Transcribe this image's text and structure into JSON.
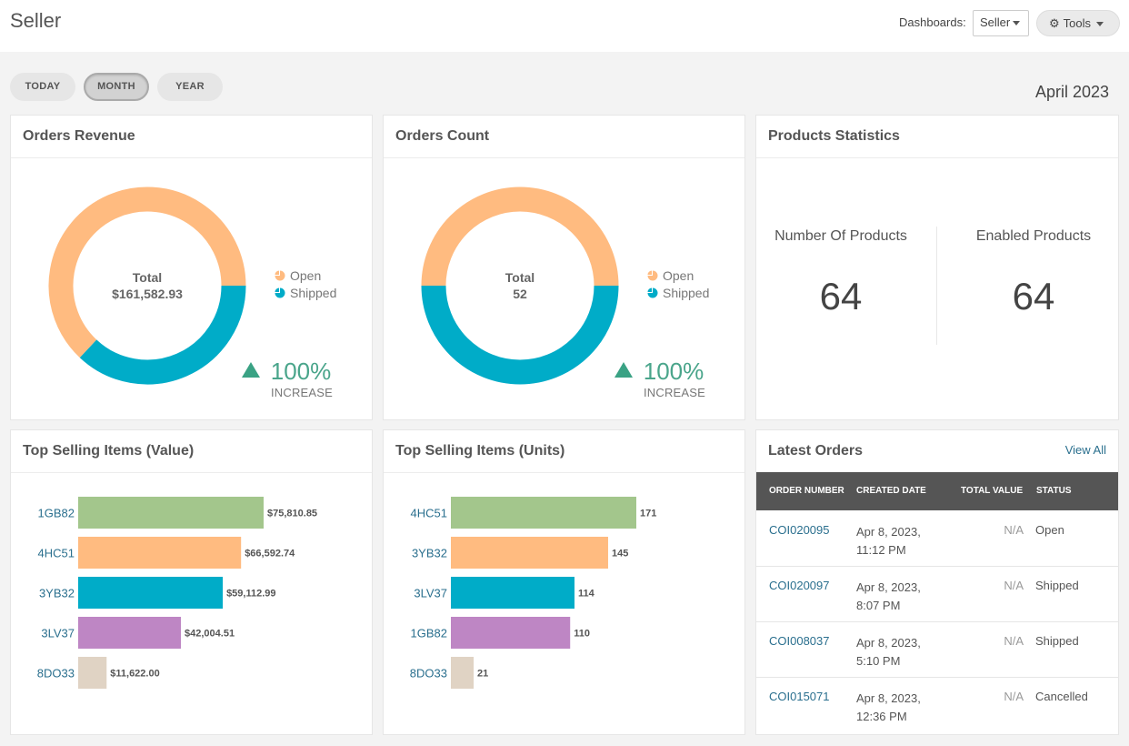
{
  "header": {
    "title": "Seller",
    "dashboards_label": "Dashboards:",
    "dashboard_select": "Seller",
    "tools_label": "Tools",
    "tools_icon": "gear-icon"
  },
  "period_tabs": [
    {
      "label": "TODAY",
      "active": false
    },
    {
      "label": "MONTH",
      "active": true
    },
    {
      "label": "YEAR",
      "active": false
    }
  ],
  "period_label": "April 2023",
  "orders_revenue": {
    "title": "Orders Revenue",
    "center_label": "Total",
    "center_value": "$161,582.93",
    "legend": [
      {
        "name": "Open",
        "color": "#ffbb80"
      },
      {
        "name": "Shipped",
        "color": "#00acc8"
      }
    ],
    "increase_pct": "100%",
    "increase_label": "INCREASE"
  },
  "orders_count": {
    "title": "Orders Count",
    "center_label": "Total",
    "center_value": "52",
    "legend": [
      {
        "name": "Open",
        "color": "#ffbb80"
      },
      {
        "name": "Shipped",
        "color": "#00acc8"
      }
    ],
    "increase_pct": "100%",
    "increase_label": "INCREASE"
  },
  "products_statistics": {
    "title": "Products Statistics",
    "number_label": "Number Of Products",
    "number_value": "64",
    "enabled_label": "Enabled Products",
    "enabled_value": "64"
  },
  "top_value": {
    "title": "Top Selling Items (Value)"
  },
  "top_units": {
    "title": "Top Selling Items (Units)"
  },
  "latest_orders": {
    "title": "Latest Orders",
    "view_all": "View All",
    "columns": [
      "ORDER NUMBER",
      "CREATED DATE",
      "TOTAL VALUE",
      "STATUS"
    ],
    "rows": [
      {
        "number": "COI020095",
        "date_line1": "Apr 8, 2023,",
        "date_line2": "11:12 PM",
        "total": "N/A",
        "status": "Open"
      },
      {
        "number": "COI020097",
        "date_line1": "Apr 8, 2023,",
        "date_line2": "8:07 PM",
        "total": "N/A",
        "status": "Shipped"
      },
      {
        "number": "COI008037",
        "date_line1": "Apr 8, 2023,",
        "date_line2": "5:10 PM",
        "total": "N/A",
        "status": "Shipped"
      },
      {
        "number": "COI015071",
        "date_line1": "Apr 8, 2023,",
        "date_line2": "12:36 PM",
        "total": "N/A",
        "status": "Cancelled"
      }
    ]
  },
  "chart_data": [
    {
      "type": "pie",
      "chart": "orders_revenue",
      "categories": [
        "Open",
        "Shipped"
      ],
      "values": [
        63,
        37
      ],
      "colors": [
        "#ffbb80",
        "#00acc8"
      ]
    },
    {
      "type": "pie",
      "chart": "orders_count",
      "categories": [
        "Open",
        "Shipped"
      ],
      "values": [
        50,
        50
      ],
      "colors": [
        "#ffbb80",
        "#00acc8"
      ]
    },
    {
      "type": "bar",
      "chart": "top_value",
      "orientation": "horizontal",
      "categories": [
        "1GB82",
        "4HC51",
        "3YB32",
        "3LV37",
        "8DO33"
      ],
      "values": [
        75810.85,
        66592.74,
        59112.99,
        42004.51,
        11622.0
      ],
      "value_labels": [
        "$75,810.85",
        "$66,592.74",
        "$59,112.99",
        "$42,004.51",
        "$11,622.00"
      ],
      "colors": [
        "#a3c68c",
        "#ffbb80",
        "#00acc8",
        "#be86c4",
        "#e0d3c4"
      ]
    },
    {
      "type": "bar",
      "chart": "top_units",
      "orientation": "horizontal",
      "categories": [
        "4HC51",
        "3YB32",
        "3LV37",
        "1GB82",
        "8DO33"
      ],
      "values": [
        171,
        145,
        114,
        110,
        21
      ],
      "value_labels": [
        "171",
        "145",
        "114",
        "110",
        "21"
      ],
      "colors": [
        "#a3c68c",
        "#ffbb80",
        "#00acc8",
        "#be86c4",
        "#e0d3c4"
      ]
    }
  ]
}
